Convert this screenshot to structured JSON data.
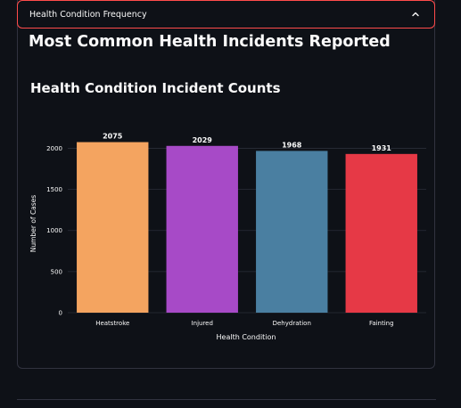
{
  "expander": {
    "label": "Health Condition Frequency",
    "icon": "chevron-up-icon",
    "expanded": true,
    "accent": "#ff4b4b"
  },
  "section": {
    "title": "Most Common Health Incidents Reported"
  },
  "chart_data": {
    "type": "bar",
    "title": "Health Condition Incident Counts",
    "xlabel": "Health Condition",
    "ylabel": "Number of Cases",
    "categories": [
      "Heatstroke",
      "Injured",
      "Dehydration",
      "Fainting"
    ],
    "values": [
      2075,
      2029,
      1968,
      1931
    ],
    "data_labels": [
      "2075",
      "2029",
      "1968",
      "1931"
    ],
    "colors": [
      "#f4a460",
      "#a74ac7",
      "#4a7fa1",
      "#e63946"
    ],
    "ylim": [
      0,
      2200
    ],
    "yticks": [
      0,
      500,
      1000,
      1500,
      2000
    ],
    "ytick_labels": [
      "0",
      "500",
      "1000",
      "1500",
      "2000"
    ],
    "grid": true,
    "legend": "none"
  }
}
